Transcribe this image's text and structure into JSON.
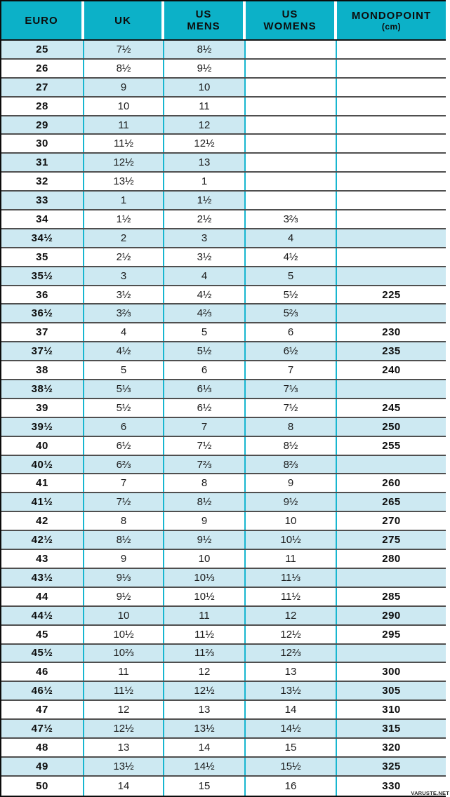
{
  "colors": {
    "header_bg": "#0cb1c8",
    "row_shade": "#cde9f2",
    "grid_vertical": "#17b6d0",
    "grid_horizontal": "#4f4f4f",
    "outer_border": "#0c0c0c"
  },
  "watermark": "VARUSTE.NET",
  "table": {
    "columns": [
      {
        "id": "euro",
        "lines": [
          "EURO"
        ]
      },
      {
        "id": "uk",
        "lines": [
          "UK"
        ]
      },
      {
        "id": "us_mens",
        "lines": [
          "US",
          "MENS"
        ]
      },
      {
        "id": "us_womens",
        "lines": [
          "US",
          "WOMENS"
        ]
      },
      {
        "id": "mondopoint",
        "lines": [
          "MONDOPOINT",
          "(cm)"
        ]
      }
    ],
    "rows": [
      {
        "euro": "25",
        "uk": "7½",
        "us_mens": "8½",
        "us_womens": "",
        "mondopoint": "",
        "shade": "partial"
      },
      {
        "euro": "26",
        "uk": "8½",
        "us_mens": "9½",
        "us_womens": "",
        "mondopoint": "",
        "shade": "none"
      },
      {
        "euro": "27",
        "uk": "9",
        "us_mens": "10",
        "us_womens": "",
        "mondopoint": "",
        "shade": "partial"
      },
      {
        "euro": "28",
        "uk": "10",
        "us_mens": "11",
        "us_womens": "",
        "mondopoint": "",
        "shade": "none"
      },
      {
        "euro": "29",
        "uk": "11",
        "us_mens": "12",
        "us_womens": "",
        "mondopoint": "",
        "shade": "partial"
      },
      {
        "euro": "30",
        "uk": "11½",
        "us_mens": "12½",
        "us_womens": "",
        "mondopoint": "",
        "shade": "none"
      },
      {
        "euro": "31",
        "uk": "12½",
        "us_mens": "13",
        "us_womens": "",
        "mondopoint": "",
        "shade": "partial"
      },
      {
        "euro": "32",
        "uk": "13½",
        "us_mens": "1",
        "us_womens": "",
        "mondopoint": "",
        "shade": "none"
      },
      {
        "euro": "33",
        "uk": "1",
        "us_mens": "1½",
        "us_womens": "",
        "mondopoint": "",
        "shade": "partial"
      },
      {
        "euro": "34",
        "uk": "1½",
        "us_mens": "2½",
        "us_womens": "3⅔",
        "mondopoint": "",
        "shade": "none"
      },
      {
        "euro": "34½",
        "uk": "2",
        "us_mens": "3",
        "us_womens": "4",
        "mondopoint": "",
        "shade": "full"
      },
      {
        "euro": "35",
        "uk": "2½",
        "us_mens": "3½",
        "us_womens": "4½",
        "mondopoint": "",
        "shade": "none"
      },
      {
        "euro": "35½",
        "uk": "3",
        "us_mens": "4",
        "us_womens": "5",
        "mondopoint": "",
        "shade": "full"
      },
      {
        "euro": "36",
        "uk": "3½",
        "us_mens": "4½",
        "us_womens": "5½",
        "mondopoint": "225",
        "shade": "none"
      },
      {
        "euro": "36½",
        "uk": "3⅔",
        "us_mens": "4⅔",
        "us_womens": "5⅔",
        "mondopoint": "",
        "shade": "full"
      },
      {
        "euro": "37",
        "uk": "4",
        "us_mens": "5",
        "us_womens": "6",
        "mondopoint": "230",
        "shade": "none"
      },
      {
        "euro": "37½",
        "uk": "4½",
        "us_mens": "5½",
        "us_womens": "6½",
        "mondopoint": "235",
        "shade": "full"
      },
      {
        "euro": "38",
        "uk": "5",
        "us_mens": "6",
        "us_womens": "7",
        "mondopoint": "240",
        "shade": "none"
      },
      {
        "euro": "38½",
        "uk": "5⅓",
        "us_mens": "6⅓",
        "us_womens": "7⅓",
        "mondopoint": "",
        "shade": "full"
      },
      {
        "euro": "39",
        "uk": "5½",
        "us_mens": "6½",
        "us_womens": "7½",
        "mondopoint": "245",
        "shade": "none"
      },
      {
        "euro": "39½",
        "uk": "6",
        "us_mens": "7",
        "us_womens": "8",
        "mondopoint": "250",
        "shade": "full"
      },
      {
        "euro": "40",
        "uk": "6½",
        "us_mens": "7½",
        "us_womens": "8½",
        "mondopoint": "255",
        "shade": "none"
      },
      {
        "euro": "40½",
        "uk": "6⅔",
        "us_mens": "7⅔",
        "us_womens": "8⅔",
        "mondopoint": "",
        "shade": "full"
      },
      {
        "euro": "41",
        "uk": "7",
        "us_mens": "8",
        "us_womens": "9",
        "mondopoint": "260",
        "shade": "none"
      },
      {
        "euro": "41½",
        "uk": "7½",
        "us_mens": "8½",
        "us_womens": "9½",
        "mondopoint": "265",
        "shade": "full"
      },
      {
        "euro": "42",
        "uk": "8",
        "us_mens": "9",
        "us_womens": "10",
        "mondopoint": "270",
        "shade": "none"
      },
      {
        "euro": "42½",
        "uk": "8½",
        "us_mens": "9½",
        "us_womens": "10½",
        "mondopoint": "275",
        "shade": "full"
      },
      {
        "euro": "43",
        "uk": "9",
        "us_mens": "10",
        "us_womens": "11",
        "mondopoint": "280",
        "shade": "none"
      },
      {
        "euro": "43½",
        "uk": "9⅓",
        "us_mens": "10⅓",
        "us_womens": "11⅓",
        "mondopoint": "",
        "shade": "full"
      },
      {
        "euro": "44",
        "uk": "9½",
        "us_mens": "10½",
        "us_womens": "11½",
        "mondopoint": "285",
        "shade": "none"
      },
      {
        "euro": "44½",
        "uk": "10",
        "us_mens": "11",
        "us_womens": "12",
        "mondopoint": "290",
        "shade": "full"
      },
      {
        "euro": "45",
        "uk": "10½",
        "us_mens": "11½",
        "us_womens": "12½",
        "mondopoint": "295",
        "shade": "none"
      },
      {
        "euro": "45½",
        "uk": "10⅔",
        "us_mens": "11⅔",
        "us_womens": "12⅔",
        "mondopoint": "",
        "shade": "full"
      },
      {
        "euro": "46",
        "uk": "11",
        "us_mens": "12",
        "us_womens": "13",
        "mondopoint": "300",
        "shade": "none"
      },
      {
        "euro": "46½",
        "uk": "11½",
        "us_mens": "12½",
        "us_womens": "13½",
        "mondopoint": "305",
        "shade": "full"
      },
      {
        "euro": "47",
        "uk": "12",
        "us_mens": "13",
        "us_womens": "14",
        "mondopoint": "310",
        "shade": "none"
      },
      {
        "euro": "47½",
        "uk": "12½",
        "us_mens": "13½",
        "us_womens": "14½",
        "mondopoint": "315",
        "shade": "full"
      },
      {
        "euro": "48",
        "uk": "13",
        "us_mens": "14",
        "us_womens": "15",
        "mondopoint": "320",
        "shade": "none"
      },
      {
        "euro": "49",
        "uk": "13½",
        "us_mens": "14½",
        "us_womens": "15½",
        "mondopoint": "325",
        "shade": "full"
      },
      {
        "euro": "50",
        "uk": "14",
        "us_mens": "15",
        "us_womens": "16",
        "mondopoint": "330",
        "shade": "none"
      }
    ]
  }
}
